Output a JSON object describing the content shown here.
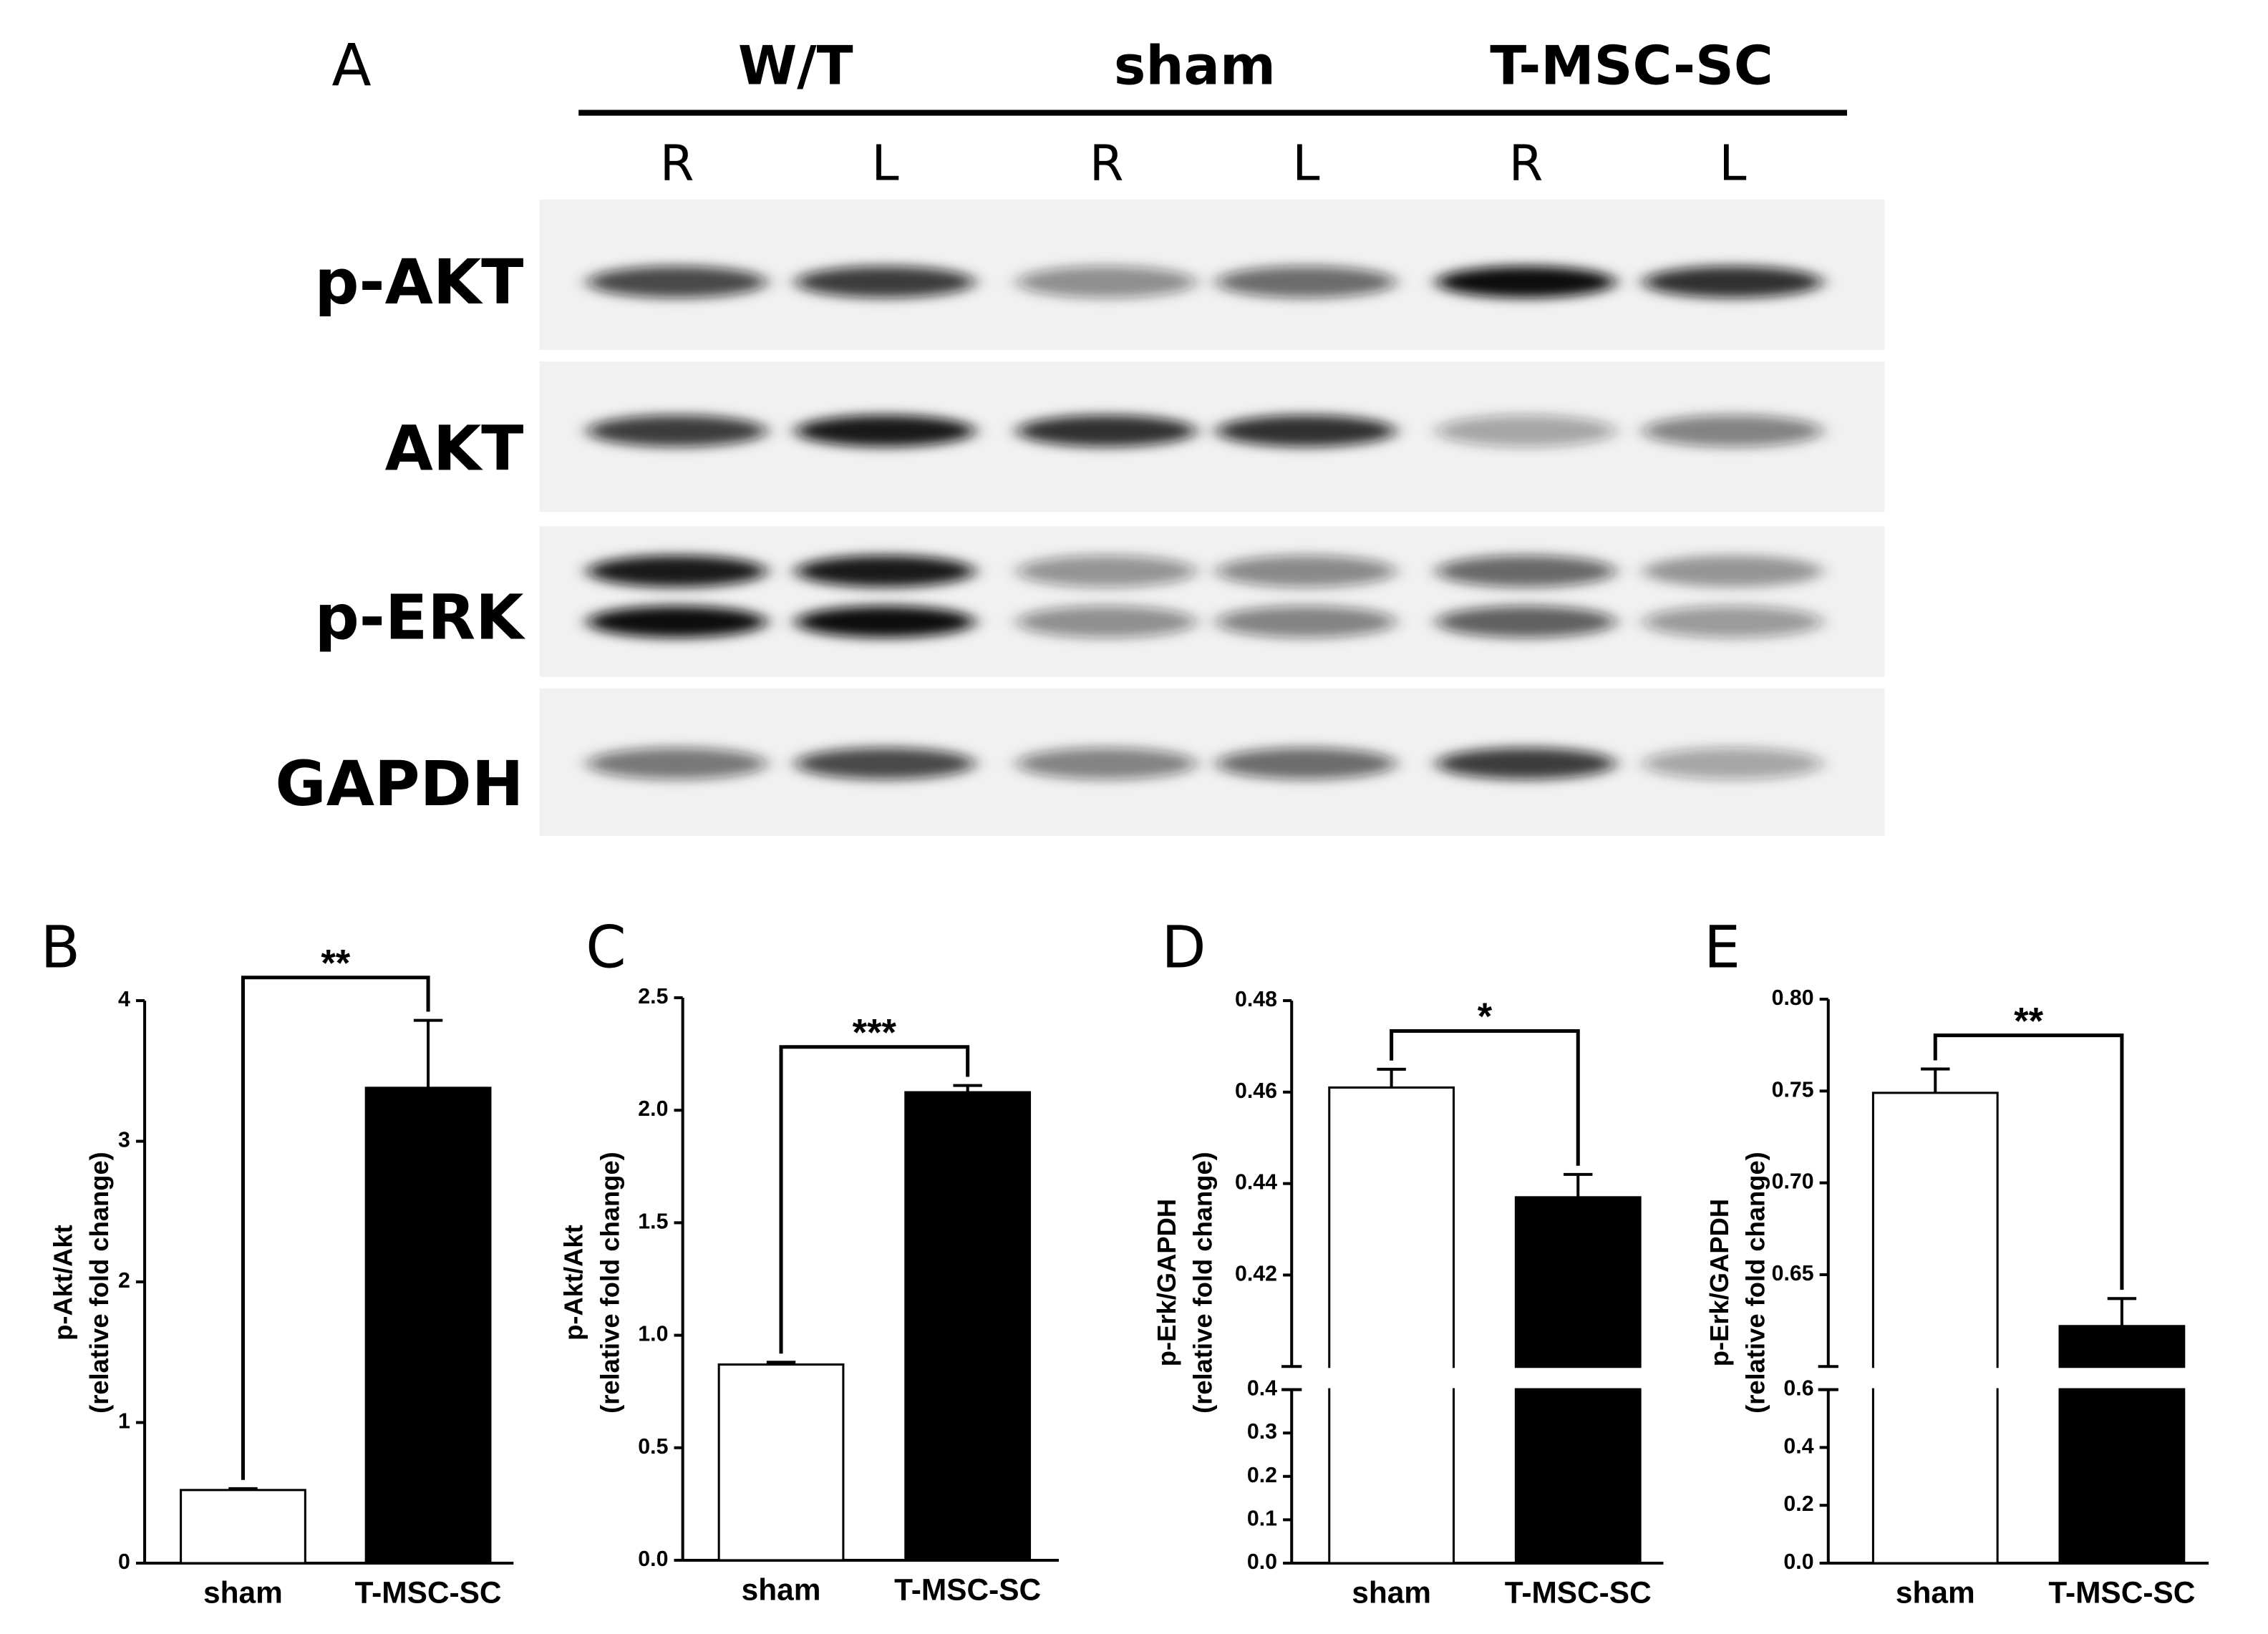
{
  "blot": {
    "panel_label": "A",
    "groups": [
      "W/T",
      "sham",
      "T-MSC-SC"
    ],
    "lanes": [
      "R",
      "L",
      "R",
      "L",
      "R",
      "L"
    ],
    "rows": [
      "p-AKT",
      "AKT",
      "p-ERK",
      "GAPDH"
    ]
  },
  "chart_data": [
    {
      "type": "bar",
      "title": "B",
      "ylabel": [
        "p-Akt/Akt",
        "(relative fold change)"
      ],
      "categories": [
        "sham",
        "T-MSC-SC"
      ],
      "values": [
        0.52,
        3.38
      ],
      "errors": [
        0.01,
        0.48
      ],
      "colors": [
        "#ffffff",
        "#000000"
      ],
      "annotation": "**",
      "ylim": [
        0,
        4
      ],
      "yticks": [
        0,
        1,
        2,
        3,
        4
      ]
    },
    {
      "type": "bar",
      "title": "C",
      "ylabel": [
        "p-Akt/Akt",
        "(relative fold change)"
      ],
      "categories": [
        "sham",
        "T-MSC-SC"
      ],
      "values": [
        0.87,
        2.08
      ],
      "errors": [
        0.01,
        0.03
      ],
      "colors": [
        "#ffffff",
        "#000000"
      ],
      "annotation": "***",
      "ylim": [
        0,
        2.5
      ],
      "yticks": [
        {
          "value": 0,
          "label": "0.0"
        },
        0.5,
        {
          "value": 1,
          "label": "1.0"
        },
        1.5,
        {
          "value": 2,
          "label": "2.0"
        },
        2.5
      ]
    },
    {
      "type": "bar",
      "title": "D",
      "ylabel": [
        "p-Erk/GAPDH",
        "(relative fold change)"
      ],
      "categories": [
        "sham",
        "T-MSC-SC"
      ],
      "values": [
        0.461,
        0.437
      ],
      "errors": [
        0.004,
        0.005
      ],
      "colors": [
        "#ffffff",
        "#000000"
      ],
      "annotation": "*",
      "axis_segments": [
        {
          "ylim": [
            0,
            0.4
          ],
          "yticks": [
            {
              "value": 0,
              "label": "0.0"
            },
            0.1,
            0.2,
            0.3,
            0.4
          ]
        },
        {
          "ylim": [
            0.4,
            0.48
          ],
          "yticks": [
            0.42,
            0.44,
            0.46,
            0.48
          ]
        }
      ]
    },
    {
      "type": "bar",
      "title": "E",
      "ylabel": [
        "p-Erk/GAPDH",
        "(relative fold change)"
      ],
      "categories": [
        "sham",
        "T-MSC-SC"
      ],
      "values": [
        0.749,
        0.622
      ],
      "errors": [
        0.013,
        0.015
      ],
      "colors": [
        "#ffffff",
        "#000000"
      ],
      "annotation": "**",
      "axis_segments": [
        {
          "ylim": [
            0,
            0.6
          ],
          "yticks": [
            {
              "value": 0,
              "label": "0.0"
            },
            0.2,
            0.4,
            0.6
          ]
        },
        {
          "ylim": [
            0.6,
            0.8
          ],
          "yticks": [
            0.65,
            {
              "value": 0.7,
              "label": "0.70"
            },
            0.75,
            {
              "value": 0.8,
              "label": "0.80"
            }
          ]
        }
      ]
    }
  ]
}
